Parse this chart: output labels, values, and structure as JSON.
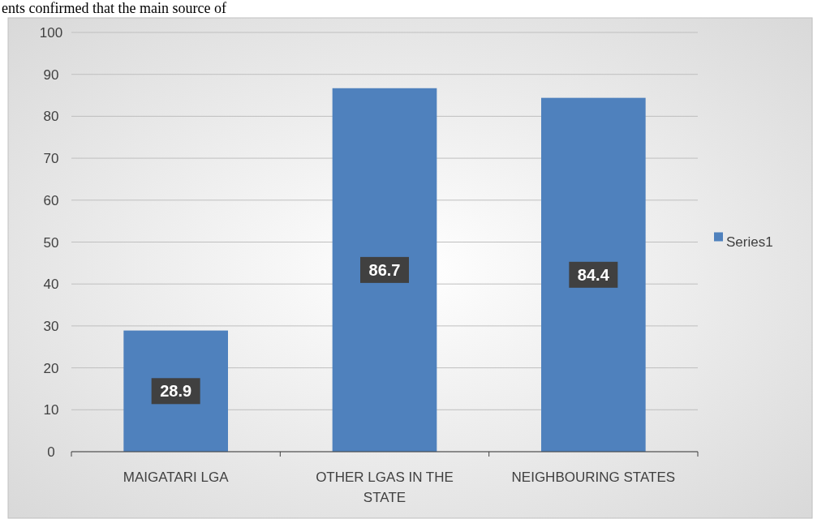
{
  "chart_data": {
    "type": "bar",
    "annotations": [
      "ents confirmed that the main source of"
    ],
    "categories": [
      "MAIGATARI LGA",
      "OTHER LGAS IN THE STATE",
      "NEIGHBOURING STATES"
    ],
    "series": [
      {
        "name": "Series1",
        "color": "#4f81bd",
        "values": [
          28.9,
          86.7,
          84.4
        ]
      }
    ],
    "ylim": [
      0,
      100
    ],
    "yticks": [
      0,
      10,
      20,
      30,
      40,
      50,
      60,
      70,
      80,
      90,
      100
    ],
    "grid": "y",
    "legend": "right",
    "data_labels": true
  }
}
